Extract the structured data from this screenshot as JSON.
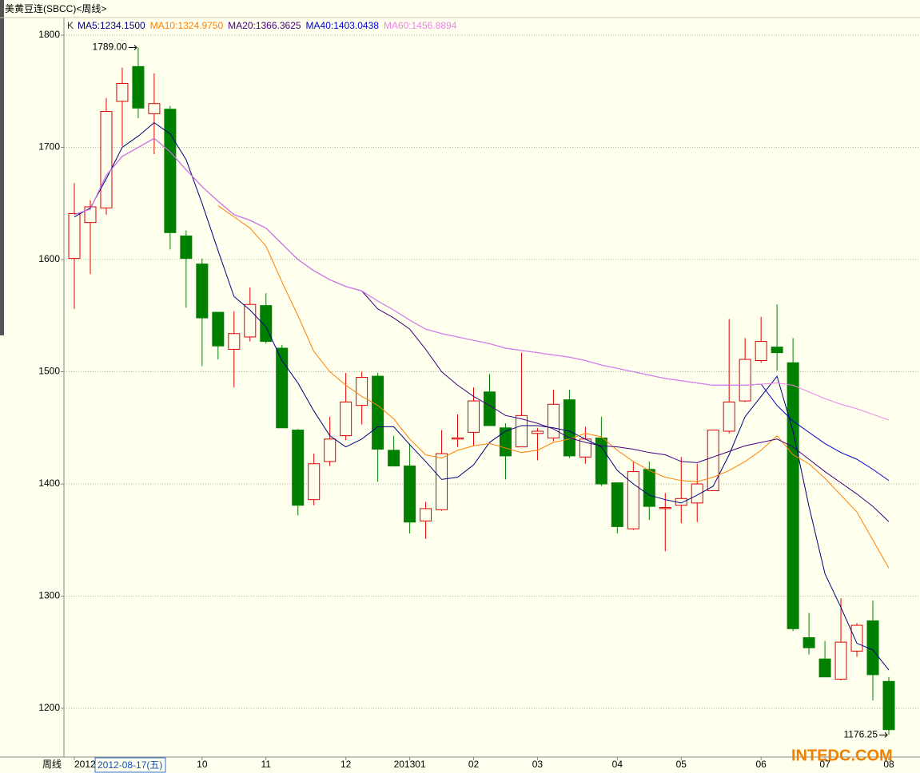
{
  "chart_data": {
    "type": "candlestick",
    "title": "美黄豆连(SBCC)<周线>",
    "period_label": "周线",
    "cursor_label": "2012-08-17(五)",
    "legend_prefix": "K",
    "categories": [
      "2012",
      null,
      null,
      null,
      null,
      null,
      null,
      null,
      "10",
      null,
      null,
      null,
      "11",
      null,
      null,
      null,
      null,
      "12",
      null,
      null,
      null,
      "201301",
      null,
      null,
      null,
      "02",
      null,
      null,
      null,
      "03",
      null,
      null,
      null,
      null,
      "04",
      null,
      null,
      null,
      "05",
      null,
      null,
      null,
      null,
      "06",
      null,
      null,
      null,
      "07",
      null,
      null,
      null,
      "08"
    ],
    "open": [
      1601,
      1633,
      1646,
      1741,
      1772,
      1730,
      1734,
      1621,
      1596,
      1553,
      1520,
      1531,
      1559,
      1521,
      1448,
      1386,
      1420,
      1443,
      1470,
      1496,
      1430,
      1416,
      1367,
      1377,
      1440,
      1446,
      1482,
      1450,
      1433,
      1445,
      1441,
      1475,
      1424,
      1441,
      1401,
      1360,
      1413,
      1378,
      1381,
      1383,
      1394,
      1447,
      1474,
      1510,
      1522,
      1508,
      1263,
      1244,
      1226,
      1251,
      1278,
      1224
    ],
    "high": [
      1668,
      1653,
      1744,
      1771,
      1789,
      1766,
      1737,
      1626,
      1601,
      1553,
      1554,
      1575,
      1570,
      1524,
      1449,
      1427,
      1460,
      1499,
      1500,
      1499,
      1443,
      1436,
      1384,
      1448,
      1462,
      1486,
      1498,
      1454,
      1517,
      1450,
      1484,
      1484,
      1451,
      1460,
      1401,
      1420,
      1420,
      1392,
      1424,
      1418,
      1448,
      1547,
      1530,
      1549,
      1560,
      1530,
      1285,
      1260,
      1298,
      1276,
      1296,
      1228
    ],
    "low": [
      1556,
      1587,
      1640,
      1701,
      1726,
      1694,
      1609,
      1557,
      1505,
      1511,
      1486,
      1527,
      1525,
      1450,
      1372,
      1381,
      1416,
      1439,
      1453,
      1402,
      1416,
      1356,
      1351,
      1376,
      1433,
      1434,
      1452,
      1404,
      1433,
      1421,
      1438,
      1423,
      1418,
      1398,
      1356,
      1359,
      1368,
      1340,
      1365,
      1366,
      1394,
      1445,
      1473,
      1508,
      1501,
      1269,
      1248,
      1228,
      1225,
      1246,
      1207,
      1176.25
    ],
    "close": [
      1641,
      1647,
      1732,
      1757,
      1735,
      1739,
      1624,
      1601,
      1548,
      1523,
      1534,
      1560,
      1527,
      1450,
      1381,
      1418,
      1440,
      1473,
      1495,
      1431,
      1416,
      1366,
      1378,
      1427,
      1441,
      1474,
      1452,
      1425,
      1461,
      1447,
      1471,
      1425,
      1440,
      1400,
      1362,
      1411,
      1380,
      1379,
      1387,
      1400,
      1448,
      1473,
      1511,
      1527,
      1517,
      1271,
      1254,
      1228,
      1259,
      1274,
      1230,
      1181
    ],
    "up_color": "#e00000",
    "down_color": "#008000",
    "series": [
      {
        "name": "MA5:1234.1500",
        "color": "#000080",
        "values": [
          1638,
          1646,
          1672,
          1700,
          1710,
          1722,
          1712,
          1689,
          1650,
          1608,
          1567,
          1555,
          1540,
          1510,
          1490,
          1465,
          1443,
          1433,
          1440,
          1451,
          1451,
          1435,
          1420,
          1404,
          1406,
          1417,
          1437,
          1447,
          1452,
          1452,
          1450,
          1447,
          1440,
          1433,
          1412,
          1400,
          1390,
          1386,
          1383,
          1390,
          1398,
          1426,
          1460,
          1478,
          1496,
          1447,
          1380,
          1320,
          1290,
          1258,
          1252,
          1234.15
        ]
      },
      {
        "name": "MA10:1324.9750",
        "color": "#ff8000",
        "values": [
          null,
          null,
          null,
          null,
          null,
          null,
          null,
          null,
          null,
          1648,
          1638,
          1628,
          1612,
          1580,
          1550,
          1518,
          1500,
          1488,
          1478,
          1470,
          1458,
          1440,
          1426,
          1423,
          1430,
          1434,
          1436,
          1432,
          1428,
          1430,
          1437,
          1440,
          1445,
          1442,
          1430,
          1420,
          1412,
          1406,
          1403,
          1402,
          1406,
          1412,
          1420,
          1430,
          1443,
          1426,
          1418,
          1405,
          1390,
          1375,
          1350,
          1324.975
        ]
      },
      {
        "name": "MA20:1366.3625",
        "color": "#400080",
        "values": [
          1640,
          1645,
          1675,
          1692,
          1700,
          1708,
          1696,
          1680,
          1665,
          1652,
          1640,
          1635,
          1628,
          1614,
          1600,
          1590,
          1582,
          1576,
          1572,
          1556,
          1548,
          1538,
          1520,
          1500,
          1488,
          1478,
          1470,
          1461,
          1458,
          1454,
          1449,
          1441,
          1437,
          1434,
          1433,
          1431,
          1428,
          1426,
          1420,
          1419,
          1424,
          1429,
          1434,
          1437,
          1440,
          1433,
          1422,
          1411,
          1401,
          1391,
          1380,
          1366.3625
        ]
      },
      {
        "name": "MA40:1403.0438",
        "color": "#0000cc",
        "values": [
          1640,
          1645,
          1675,
          1692,
          1700,
          1708,
          1696,
          1680,
          1665,
          1652,
          1640,
          1635,
          1628,
          1614,
          1600,
          1590,
          1582,
          1576,
          1572,
          1563,
          1555,
          1546,
          1538,
          1534,
          1531,
          1528,
          1525,
          1521,
          1519,
          1517,
          1515,
          1513,
          1510,
          1506,
          1503,
          1500,
          1497,
          1494,
          1492,
          1490,
          1488,
          1488,
          1488,
          1489,
          1470,
          1456,
          1446,
          1436,
          1428,
          1422,
          1413,
          1403.0438
        ]
      },
      {
        "name": "MA60:1456.8894",
        "color": "#ee82ee",
        "values": [
          1640,
          1645,
          1675,
          1692,
          1700,
          1708,
          1696,
          1680,
          1665,
          1652,
          1640,
          1635,
          1628,
          1614,
          1600,
          1590,
          1582,
          1576,
          1572,
          1563,
          1555,
          1546,
          1538,
          1534,
          1531,
          1528,
          1525,
          1521,
          1519,
          1517,
          1515,
          1513,
          1510,
          1506,
          1503,
          1500,
          1497,
          1494,
          1492,
          1490,
          1488,
          1488,
          1488,
          1489,
          1490,
          1488,
          1482,
          1476,
          1471,
          1467,
          1462,
          1456.8894
        ]
      }
    ],
    "annotations": [
      {
        "label": "1789.00"
      },
      {
        "label": "1176.25"
      }
    ],
    "ylim": [
      1156.6,
      1811.4
    ],
    "yticks": [
      1200,
      1300,
      1400,
      1500,
      1600,
      1700,
      1800
    ],
    "grid": true
  }
}
